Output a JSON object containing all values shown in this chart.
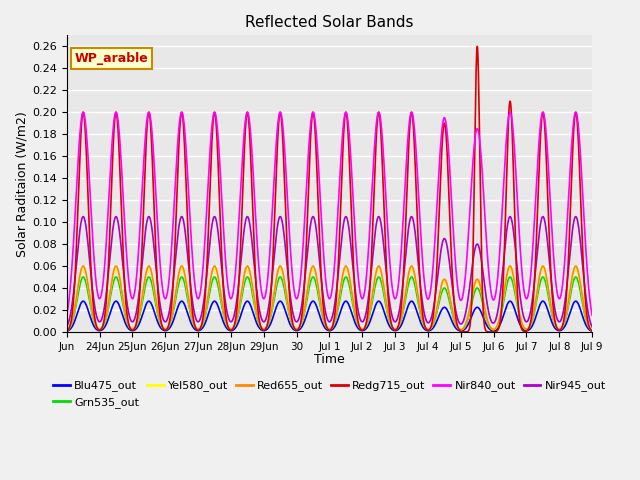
{
  "title": "Reflected Solar Bands",
  "xlabel": "Time",
  "ylabel": "Solar Raditaion (W/m2)",
  "ylim": [
    0.0,
    0.27
  ],
  "yticks": [
    0.0,
    0.02,
    0.04,
    0.06,
    0.08,
    0.1,
    0.12,
    0.14,
    0.16,
    0.18,
    0.2,
    0.22,
    0.24,
    0.26
  ],
  "annotation_text": "WP_arable",
  "band_colors": {
    "Blu475_out": "#0000ff",
    "Grn535_out": "#00dd00",
    "Yel580_out": "#ffff00",
    "Red655_out": "#ff8800",
    "Redg715_out": "#dd0000",
    "Nir840_out": "#ff00ff",
    "Nir945_out": "#aa00cc"
  },
  "background_color": "#e8e8e8",
  "grid_color": "#ffffff",
  "num_days": 16,
  "tick_labels": [
    "Jun",
    "24Jun",
    "25Jun",
    "26Jun",
    "27Jun",
    "28Jun",
    "29Jun",
    "30",
    "Jul 1",
    "Jul 2",
    "Jul 3",
    "Jul 4",
    "Jul 5",
    "Jul 6",
    "Jul 7",
    "Jul 8",
    "Jul 9"
  ]
}
